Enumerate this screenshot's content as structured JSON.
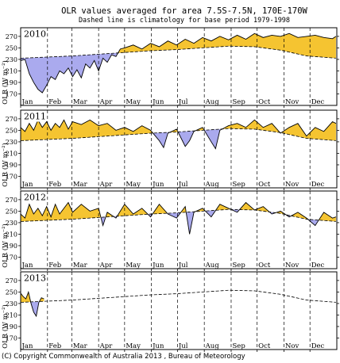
{
  "chart_data": {
    "type": "area",
    "title": "OLR values averaged for area 7.5S-7.5N, 170E-170W",
    "subtitle": "Dashed line is climatology for base period 1979-1998",
    "ylabel": "OLR (W m⁻²)",
    "ylim": [
      150,
      285
    ],
    "yticks": [
      170,
      190,
      210,
      230,
      250,
      270
    ],
    "months": [
      "Jan",
      "Feb",
      "Mar",
      "Apr",
      "May",
      "Jun",
      "Jul",
      "Aug",
      "Sep",
      "Oct",
      "Nov",
      "Dec"
    ],
    "month_start_days": [
      0,
      31,
      59,
      90,
      120,
      151,
      181,
      212,
      243,
      273,
      304,
      334
    ],
    "days_in_year": 365,
    "colors": {
      "above": "#f5c431",
      "below": "#aaaaee",
      "line": "#000000",
      "climatology": "#000000"
    },
    "climatology": {
      "x": [
        0,
        30,
        60,
        90,
        120,
        150,
        180,
        210,
        240,
        270,
        300,
        330,
        365
      ],
      "y": [
        232,
        234,
        236,
        239,
        242,
        245,
        247,
        250,
        253,
        252,
        246,
        236,
        232
      ]
    },
    "panels": [
      {
        "year": "2010",
        "x": [
          0,
          5,
          10,
          15,
          20,
          25,
          30,
          35,
          40,
          45,
          50,
          55,
          60,
          65,
          70,
          75,
          80,
          85,
          90,
          95,
          100,
          105,
          110,
          115,
          120,
          130,
          140,
          150,
          160,
          170,
          180,
          190,
          200,
          210,
          220,
          230,
          240,
          250,
          260,
          270,
          280,
          290,
          300,
          310,
          320,
          330,
          340,
          350,
          360,
          364
        ],
        "y": [
          228,
          230,
          205,
          190,
          178,
          172,
          185,
          200,
          195,
          210,
          205,
          215,
          200,
          212,
          198,
          222,
          215,
          228,
          210,
          232,
          225,
          238,
          235,
          248,
          250,
          255,
          248,
          258,
          252,
          262,
          255,
          265,
          258,
          268,
          262,
          270,
          264,
          272,
          265,
          275,
          268,
          272,
          270,
          275,
          268,
          270,
          272,
          268,
          266,
          270
        ]
      },
      {
        "year": "2011",
        "x": [
          0,
          5,
          10,
          15,
          20,
          25,
          30,
          35,
          40,
          45,
          50,
          55,
          60,
          70,
          80,
          90,
          100,
          110,
          120,
          130,
          140,
          150,
          160,
          165,
          170,
          180,
          190,
          195,
          200,
          210,
          220,
          225,
          230,
          240,
          250,
          260,
          270,
          280,
          290,
          300,
          310,
          320,
          330,
          340,
          350,
          360,
          364
        ],
        "y": [
          255,
          248,
          262,
          250,
          268,
          255,
          265,
          250,
          262,
          255,
          268,
          252,
          265,
          260,
          268,
          258,
          262,
          250,
          255,
          248,
          258,
          250,
          232,
          220,
          245,
          252,
          222,
          232,
          248,
          255,
          230,
          218,
          250,
          258,
          262,
          255,
          268,
          255,
          262,
          245,
          255,
          262,
          240,
          255,
          248,
          265,
          262
        ]
      },
      {
        "year": "2012",
        "x": [
          0,
          5,
          10,
          15,
          20,
          25,
          30,
          35,
          40,
          45,
          50,
          55,
          60,
          70,
          80,
          90,
          95,
          100,
          110,
          120,
          130,
          140,
          150,
          160,
          170,
          180,
          190,
          195,
          200,
          210,
          220,
          230,
          240,
          250,
          260,
          270,
          280,
          290,
          300,
          310,
          320,
          330,
          340,
          350,
          360,
          364
        ],
        "y": [
          245,
          238,
          262,
          245,
          255,
          242,
          258,
          240,
          262,
          245,
          255,
          265,
          248,
          262,
          250,
          255,
          225,
          248,
          238,
          262,
          245,
          255,
          240,
          262,
          245,
          238,
          258,
          210,
          248,
          255,
          240,
          262,
          255,
          248,
          265,
          252,
          258,
          245,
          250,
          240,
          248,
          238,
          225,
          248,
          238,
          240
        ]
      },
      {
        "year": "2013",
        "x": [
          0,
          3,
          6,
          9,
          12,
          15,
          18,
          21,
          24,
          27
        ],
        "y": [
          248,
          242,
          238,
          250,
          230,
          215,
          208,
          232,
          240,
          238
        ]
      }
    ]
  },
  "copyright": "(C) Copyright Commonwealth of Australia 2013 , Bureau of Meteorology"
}
